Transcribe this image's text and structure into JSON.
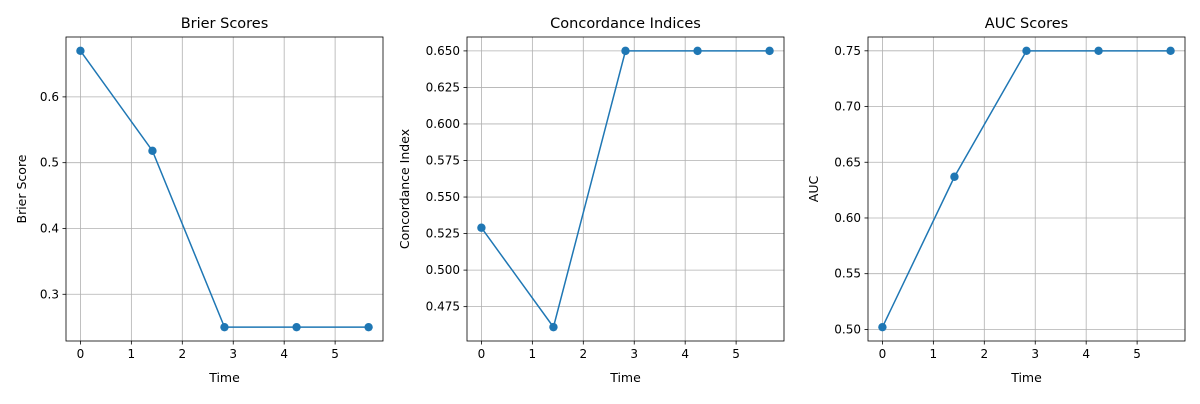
{
  "style": {
    "line_color": "#1f77b4",
    "grid_color": "#b0b0b0",
    "axes_color": "#000000"
  },
  "chart_data": [
    {
      "type": "line",
      "title": "Brier Scores",
      "xlabel": "Time",
      "ylabel": "Brier Score",
      "grid": true,
      "x": [
        0,
        1.414,
        2.828,
        4.243,
        5.657
      ],
      "series": [
        {
          "values": [
            0.67,
            0.518,
            0.25,
            0.25,
            0.25
          ]
        }
      ],
      "xlim": [
        -0.283,
        5.94
      ],
      "ylim": [
        0.229,
        0.691
      ],
      "xticks": [
        {
          "value": 0,
          "label": "0"
        },
        {
          "value": 1,
          "label": "1"
        },
        {
          "value": 2,
          "label": "2"
        },
        {
          "value": 3,
          "label": "3"
        },
        {
          "value": 4,
          "label": "4"
        },
        {
          "value": 5,
          "label": "5"
        }
      ],
      "yticks": [
        {
          "value": 0.3,
          "label": "0.3"
        },
        {
          "value": 0.4,
          "label": "0.4"
        },
        {
          "value": 0.5,
          "label": "0.5"
        },
        {
          "value": 0.6,
          "label": "0.6"
        }
      ]
    },
    {
      "type": "line",
      "title": "Concordance Indices",
      "xlabel": "Time",
      "ylabel": "Concordance Index",
      "grid": true,
      "x": [
        0,
        1.414,
        2.828,
        4.243,
        5.657
      ],
      "series": [
        {
          "values": [
            0.529,
            0.461,
            0.65,
            0.65,
            0.65
          ]
        }
      ],
      "xlim": [
        -0.283,
        5.94
      ],
      "ylim": [
        0.4515,
        0.6595
      ],
      "xticks": [
        {
          "value": 0,
          "label": "0"
        },
        {
          "value": 1,
          "label": "1"
        },
        {
          "value": 2,
          "label": "2"
        },
        {
          "value": 3,
          "label": "3"
        },
        {
          "value": 4,
          "label": "4"
        },
        {
          "value": 5,
          "label": "5"
        }
      ],
      "yticks": [
        {
          "value": 0.475,
          "label": "0.475"
        },
        {
          "value": 0.5,
          "label": "0.500"
        },
        {
          "value": 0.525,
          "label": "0.525"
        },
        {
          "value": 0.55,
          "label": "0.550"
        },
        {
          "value": 0.575,
          "label": "0.575"
        },
        {
          "value": 0.6,
          "label": "0.600"
        },
        {
          "value": 0.625,
          "label": "0.625"
        },
        {
          "value": 0.65,
          "label": "0.650"
        }
      ]
    },
    {
      "type": "line",
      "title": "AUC Scores",
      "xlabel": "Time",
      "ylabel": "AUC",
      "grid": true,
      "x": [
        0,
        1.414,
        2.828,
        4.243,
        5.657
      ],
      "series": [
        {
          "values": [
            0.502,
            0.637,
            0.75,
            0.75,
            0.75
          ]
        }
      ],
      "xlim": [
        -0.283,
        5.94
      ],
      "ylim": [
        0.4896,
        0.7624
      ],
      "xticks": [
        {
          "value": 0,
          "label": "0"
        },
        {
          "value": 1,
          "label": "1"
        },
        {
          "value": 2,
          "label": "2"
        },
        {
          "value": 3,
          "label": "3"
        },
        {
          "value": 4,
          "label": "4"
        },
        {
          "value": 5,
          "label": "5"
        }
      ],
      "yticks": [
        {
          "value": 0.5,
          "label": "0.50"
        },
        {
          "value": 0.55,
          "label": "0.55"
        },
        {
          "value": 0.6,
          "label": "0.60"
        },
        {
          "value": 0.65,
          "label": "0.65"
        },
        {
          "value": 0.7,
          "label": "0.70"
        },
        {
          "value": 0.75,
          "label": "0.75"
        }
      ]
    }
  ]
}
